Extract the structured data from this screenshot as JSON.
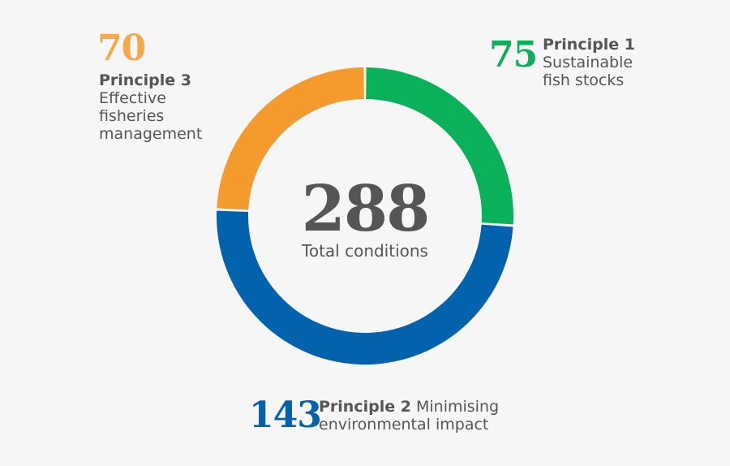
{
  "chart_data": {
    "type": "pie",
    "variant": "donut",
    "total": 288,
    "total_label": "Total conditions",
    "slices": [
      {
        "name": "Principle 1",
        "description": "Sustainable fish stocks",
        "value": 75,
        "color": "#0bb05a"
      },
      {
        "name": "Principle 2",
        "description": "Minimising environmental impact",
        "value": 143,
        "color": "#0262ad"
      },
      {
        "name": "Principle 3",
        "description": "Effective fisheries management",
        "value": 70,
        "color": "#f59a2c"
      }
    ]
  },
  "labels": {
    "p1": {
      "value": "75",
      "title": "Principle 1",
      "line1": "Sustainable",
      "line2": "fish stocks"
    },
    "p2": {
      "value": "143",
      "title": "Principle 2",
      "line1": "Minimising",
      "line2": "environmental impact"
    },
    "p3": {
      "value": "70",
      "title": "Principle 3",
      "line1": "Effective",
      "line2": "fisheries",
      "line3": "management"
    },
    "total": "288",
    "total_label": "Total conditions"
  },
  "colors": {
    "p1": "#0bb05a",
    "p2": "#0262ad",
    "p3": "#f59a2c",
    "text": "#555555",
    "background": "#f6f6f6"
  }
}
